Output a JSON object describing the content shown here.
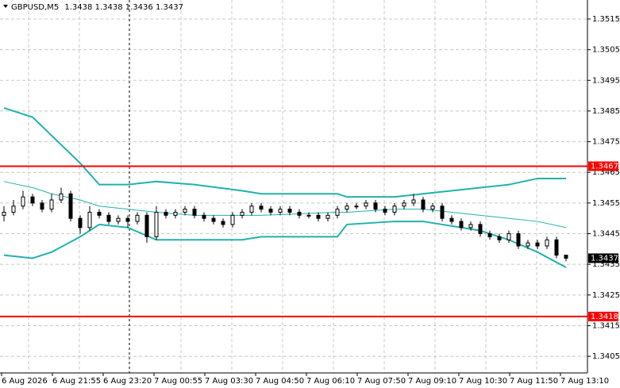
{
  "chart_data": {
    "type": "candlestick",
    "symbol": "GBPUSD,M5",
    "last_ohlc": [
      1.3438,
      1.3438,
      1.3436,
      1.3437
    ],
    "candles": [
      [
        1.3451,
        1.3454,
        1.3449,
        1.3452
      ],
      [
        1.3452,
        1.3456,
        1.3451,
        1.3454
      ],
      [
        1.3454,
        1.3459,
        1.3453,
        1.3457
      ],
      [
        1.3457,
        1.3458,
        1.3454,
        1.3455
      ],
      [
        1.3455,
        1.3456,
        1.3452,
        1.3453
      ],
      [
        1.3453,
        1.3458,
        1.3452,
        1.3456
      ],
      [
        1.3456,
        1.346,
        1.3455,
        1.3458
      ],
      [
        1.3458,
        1.3459,
        1.3449,
        1.345
      ],
      [
        1.345,
        1.3451,
        1.3445,
        1.3447
      ],
      [
        1.3447,
        1.3454,
        1.3446,
        1.3452
      ],
      [
        1.3452,
        1.3453,
        1.345,
        1.3451
      ],
      [
        1.3451,
        1.3452,
        1.3448,
        1.3449
      ],
      [
        1.3449,
        1.3451,
        1.3448,
        1.345
      ],
      [
        1.345,
        1.3451,
        1.3447,
        1.3449
      ],
      [
        1.3449,
        1.3452,
        1.3448,
        1.3451
      ],
      [
        1.3451,
        1.3452,
        1.3442,
        1.3444
      ],
      [
        1.3444,
        1.3454,
        1.3443,
        1.3452
      ],
      [
        1.3452,
        1.3453,
        1.345,
        1.3451
      ],
      [
        1.3451,
        1.3453,
        1.345,
        1.3452
      ],
      [
        1.3452,
        1.3454,
        1.3451,
        1.3453
      ],
      [
        1.3453,
        1.3454,
        1.345,
        1.3451
      ],
      [
        1.3451,
        1.3452,
        1.3449,
        1.345
      ],
      [
        1.345,
        1.3451,
        1.3448,
        1.3449
      ],
      [
        1.3449,
        1.345,
        1.3447,
        1.3448
      ],
      [
        1.3448,
        1.3452,
        1.3447,
        1.3451
      ],
      [
        1.3451,
        1.3453,
        1.345,
        1.3452
      ],
      [
        1.3452,
        1.3455,
        1.3451,
        1.3454
      ],
      [
        1.3454,
        1.3455,
        1.3452,
        1.3453
      ],
      [
        1.3453,
        1.3454,
        1.3451,
        1.3452
      ],
      [
        1.3452,
        1.3454,
        1.3451,
        1.3453
      ],
      [
        1.3453,
        1.3454,
        1.3451,
        1.3452
      ],
      [
        1.3452,
        1.3453,
        1.345,
        1.3451
      ],
      [
        1.3451,
        1.3452,
        1.345,
        1.3451
      ],
      [
        1.3451,
        1.3452,
        1.3449,
        1.345
      ],
      [
        1.345,
        1.3452,
        1.3449,
        1.3451
      ],
      [
        1.3451,
        1.3454,
        1.345,
        1.3453
      ],
      [
        1.3453,
        1.3455,
        1.3452,
        1.3454
      ],
      [
        1.3454,
        1.3455,
        1.3453,
        1.3454
      ],
      [
        1.3454,
        1.3456,
        1.3453,
        1.3455
      ],
      [
        1.3455,
        1.3456,
        1.3452,
        1.3453
      ],
      [
        1.3453,
        1.3454,
        1.3451,
        1.3452
      ],
      [
        1.3452,
        1.3455,
        1.3451,
        1.3454
      ],
      [
        1.3454,
        1.3456,
        1.3453,
        1.3455
      ],
      [
        1.3455,
        1.3458,
        1.3454,
        1.3456
      ],
      [
        1.3456,
        1.3457,
        1.3452,
        1.3453
      ],
      [
        1.3453,
        1.3455,
        1.3452,
        1.3454
      ],
      [
        1.3454,
        1.3455,
        1.3449,
        1.345
      ],
      [
        1.345,
        1.3451,
        1.3448,
        1.3449
      ],
      [
        1.3449,
        1.345,
        1.3446,
        1.3447
      ],
      [
        1.3447,
        1.3449,
        1.3446,
        1.3448
      ],
      [
        1.3448,
        1.3449,
        1.3444,
        1.3445
      ],
      [
        1.3445,
        1.3446,
        1.3443,
        1.3444
      ],
      [
        1.3444,
        1.3445,
        1.3442,
        1.3443
      ],
      [
        1.3443,
        1.3446,
        1.3442,
        1.3445
      ],
      [
        1.3445,
        1.3446,
        1.344,
        1.3441
      ],
      [
        1.3441,
        1.3443,
        1.344,
        1.3442
      ],
      [
        1.3442,
        1.3443,
        1.344,
        1.3441
      ],
      [
        1.3441,
        1.3444,
        1.344,
        1.3443
      ],
      [
        1.3443,
        1.3444,
        1.3437,
        1.3438
      ],
      [
        1.3438,
        1.3438,
        1.3436,
        1.3437
      ]
    ],
    "bands": {
      "color": "#20b2aa",
      "x": [
        0,
        3,
        5,
        8,
        10,
        13,
        16,
        20,
        25,
        27,
        35,
        36,
        41,
        44,
        50,
        53,
        56,
        59
      ],
      "series": [
        {
          "values": [
            1.3486,
            1.3483,
            1.3477,
            1.3468,
            1.3461,
            1.3461,
            1.3462,
            1.3461,
            1.3459,
            1.3458,
            1.3458,
            1.3457,
            1.3457,
            1.3458,
            1.346,
            1.3461,
            1.3463,
            1.3463
          ]
        },
        {
          "values": [
            1.3462,
            1.346,
            1.3458,
            1.3456,
            1.3454,
            1.3453,
            1.3452,
            1.3451,
            1.3451,
            1.3451,
            1.3452,
            1.3452,
            1.3453,
            1.3453,
            1.3451,
            1.345,
            1.3449,
            1.3447
          ]
        },
        {
          "values": [
            1.3438,
            1.3437,
            1.3439,
            1.3444,
            1.3448,
            1.3447,
            1.3443,
            1.3443,
            1.3443,
            1.3444,
            1.3444,
            1.3448,
            1.3449,
            1.3449,
            1.3446,
            1.3443,
            1.3439,
            1.3434
          ]
        }
      ]
    },
    "levels": {
      "color": "#ff0000",
      "values": [
        1.3467,
        1.3418
      ]
    },
    "ylim": [
      1.33996,
      1.35212
    ],
    "yticks": [
      1.3515,
      1.3505,
      1.3495,
      1.3485,
      1.3475,
      1.3465,
      1.3455,
      1.3445,
      1.3435,
      1.3425,
      1.3415,
      1.3405
    ],
    "grid": true,
    "x_labels": [
      "6 Aug 2026",
      "6 Aug 21:55",
      "6 Aug 23:20",
      "7 Aug 00:55",
      "7 Aug 03:30",
      "7 Aug 04:50",
      "7 Aug 06:10",
      "7 Aug 07:50",
      "7 Aug 09:10",
      "7 Aug 10:30",
      "7 Aug 11:50",
      "7 Aug 13:10"
    ]
  }
}
